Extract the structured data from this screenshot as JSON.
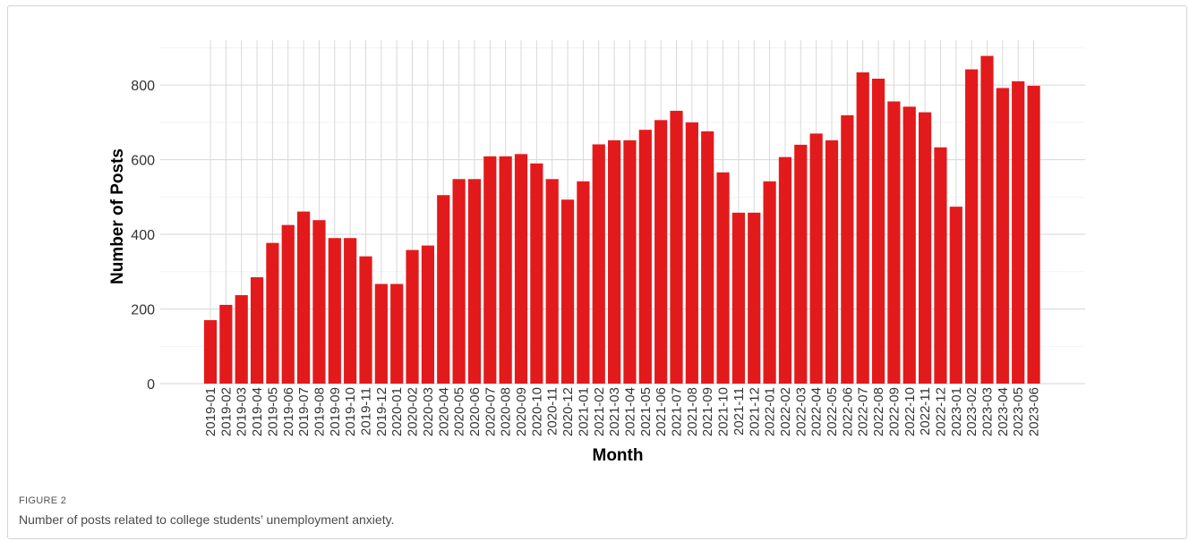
{
  "figure": {
    "label": "FIGURE 2",
    "caption": "Number of posts related to college students’ unemployment anxiety."
  },
  "chart_data": {
    "type": "bar",
    "xlabel": "Month",
    "ylabel": "Number of Posts",
    "ylim": [
      0,
      920
    ],
    "yticks": [
      0,
      200,
      400,
      600,
      800
    ],
    "grid": true,
    "bar_color": "#e31a1c",
    "categories": [
      "2019-01",
      "2019-02",
      "2019-03",
      "2019-04",
      "2019-05",
      "2019-06",
      "2019-07",
      "2019-08",
      "2019-09",
      "2019-10",
      "2019-11",
      "2019-12",
      "2020-01",
      "2020-02",
      "2020-03",
      "2020-04",
      "2020-05",
      "2020-06",
      "2020-07",
      "2020-08",
      "2020-09",
      "2020-10",
      "2020-11",
      "2020-12",
      "2021-01",
      "2021-02",
      "2021-03",
      "2021-04",
      "2021-05",
      "2021-06",
      "2021-07",
      "2021-08",
      "2021-09",
      "2021-10",
      "2021-11",
      "2021-12",
      "2022-01",
      "2022-02",
      "2022-03",
      "2022-04",
      "2022-05",
      "2022-06",
      "2022-07",
      "2022-08",
      "2022-09",
      "2022-10",
      "2022-11",
      "2022-12",
      "2023-01",
      "2023-02",
      "2023-03",
      "2023-04",
      "2023-05",
      "2023-06"
    ],
    "values": [
      170,
      211,
      237,
      285,
      377,
      425,
      461,
      438,
      390,
      390,
      341,
      267,
      267,
      358,
      370,
      505,
      548,
      548,
      609,
      609,
      615,
      590,
      548,
      493,
      542,
      641,
      652,
      652,
      680,
      706,
      731,
      700,
      676,
      566,
      458,
      458,
      542,
      607,
      640,
      670,
      652,
      719,
      834,
      817,
      756,
      742,
      727,
      633,
      474,
      842,
      878,
      792,
      810,
      798
    ]
  }
}
